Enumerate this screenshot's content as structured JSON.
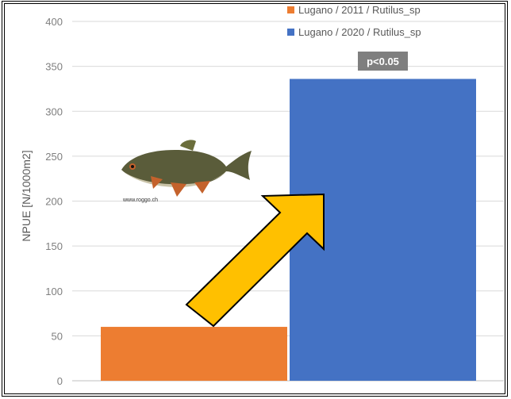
{
  "chart_data": {
    "type": "bar",
    "categories": [
      ""
    ],
    "series": [
      {
        "name": "Lugano / 2011 / Rutilus_sp",
        "values": [
          60
        ],
        "color": "#ED7D31"
      },
      {
        "name": "Lugano / 2020 / Rutilus_sp",
        "values": [
          336
        ],
        "color": "#4472C4"
      }
    ],
    "xlabel": "",
    "ylabel": "NPUE [N/1000m2]",
    "ylim": [
      0,
      400
    ],
    "yticks": [
      0,
      50,
      100,
      150,
      200,
      250,
      300,
      350,
      400
    ],
    "grid": true,
    "legend": "top-right",
    "annotations": {
      "significance": "p<0.05",
      "image_credit": "www.roggo.ch",
      "arrow_color": "#FFC000"
    }
  }
}
